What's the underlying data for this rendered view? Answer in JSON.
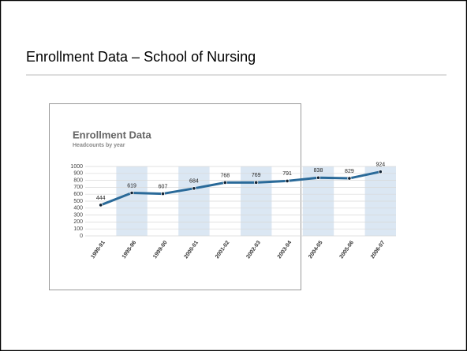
{
  "slide_title": "Enrollment Data – School of Nursing",
  "chart_data": {
    "type": "line",
    "title": "Enrollment Data",
    "subtitle": "Headcounts by year",
    "categories": [
      "1990-91",
      "1995-96",
      "1999-00",
      "2000-01",
      "2001-02",
      "2002-03",
      "2003-04",
      "2004-05",
      "2005-06",
      "2006-07"
    ],
    "values": [
      444,
      619,
      607,
      684,
      768,
      769,
      791,
      838,
      829,
      924
    ],
    "color": "#2a6a99",
    "band_color": "#dbe7f3",
    "grid": true,
    "ylim": [
      0,
      1000
    ],
    "yticks": [
      0,
      100,
      200,
      300,
      400,
      500,
      600,
      700,
      800,
      900,
      1000
    ]
  }
}
